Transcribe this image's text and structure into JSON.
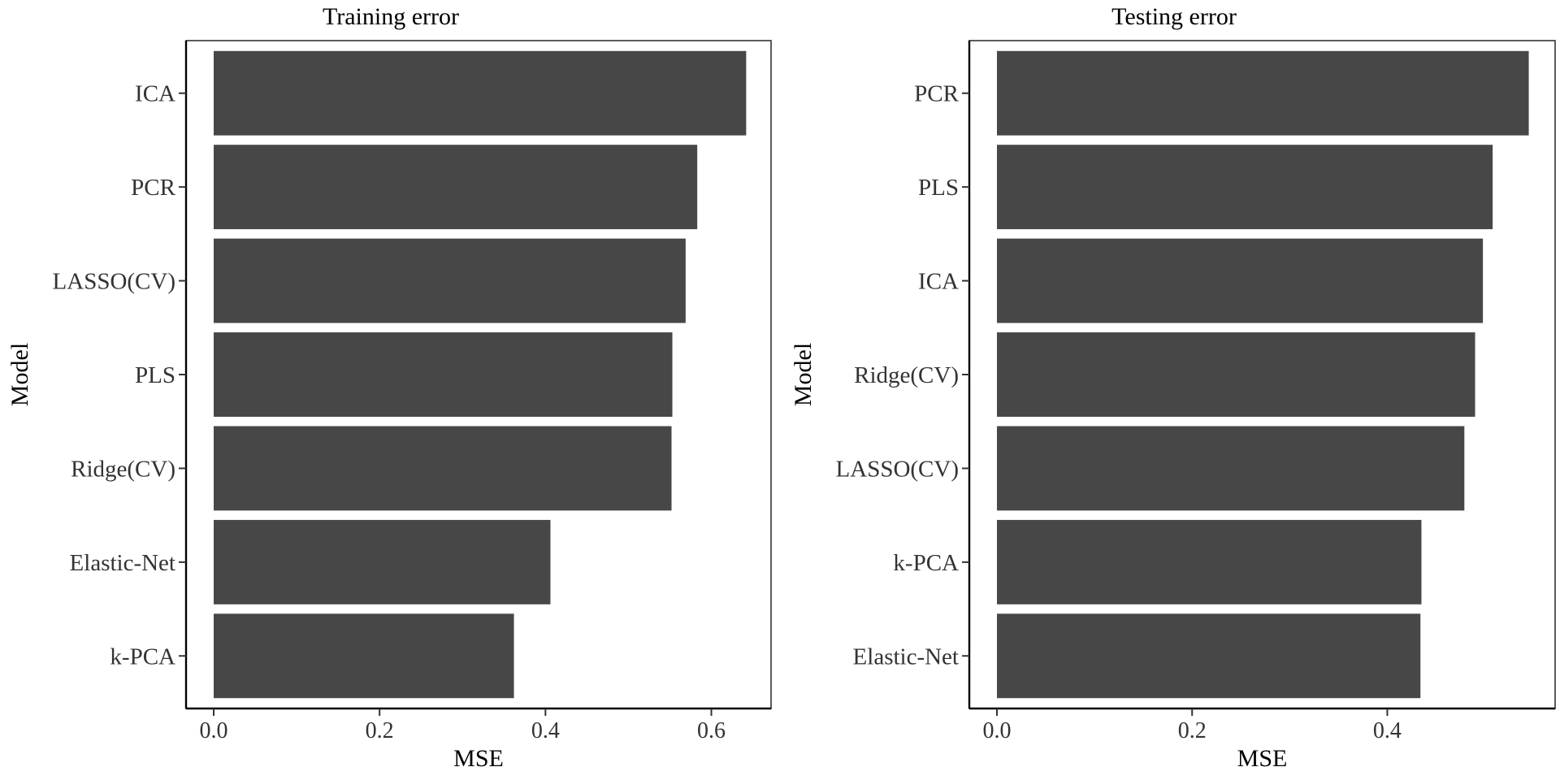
{
  "chart_data": [
    {
      "type": "bar",
      "orientation": "horizontal",
      "title": "Training error",
      "xlabel": "MSE",
      "ylabel": "Model",
      "categories": [
        "ICA",
        "PCR",
        "LASSO(CV)",
        "PLS",
        "Ridge(CV)",
        "Elastic-Net",
        "k-PCA"
      ],
      "values": [
        0.642,
        0.583,
        0.569,
        0.553,
        0.552,
        0.406,
        0.362
      ],
      "xlim": [
        0,
        0.672
      ],
      "xticks": [
        0.0,
        0.2,
        0.4,
        0.6
      ],
      "xtick_labels": [
        "0.0",
        "0.2",
        "0.4",
        "0.6"
      ],
      "bar_color": "#474747",
      "grid": false,
      "legend": "none"
    },
    {
      "type": "bar",
      "orientation": "horizontal",
      "title": "Testing error",
      "xlabel": "MSE",
      "ylabel": "Model",
      "categories": [
        "PCR",
        "PLS",
        "ICA",
        "Ridge(CV)",
        "LASSO(CV)",
        "k-PCA",
        "Elastic-Net"
      ],
      "values": [
        0.545,
        0.508,
        0.498,
        0.49,
        0.479,
        0.435,
        0.434
      ],
      "xlim": [
        0,
        0.572
      ],
      "xticks": [
        0.0,
        0.2,
        0.4
      ],
      "xtick_labels": [
        "0.0",
        "0.2",
        "0.4"
      ],
      "bar_color": "#474747",
      "grid": false,
      "legend": "none"
    }
  ]
}
